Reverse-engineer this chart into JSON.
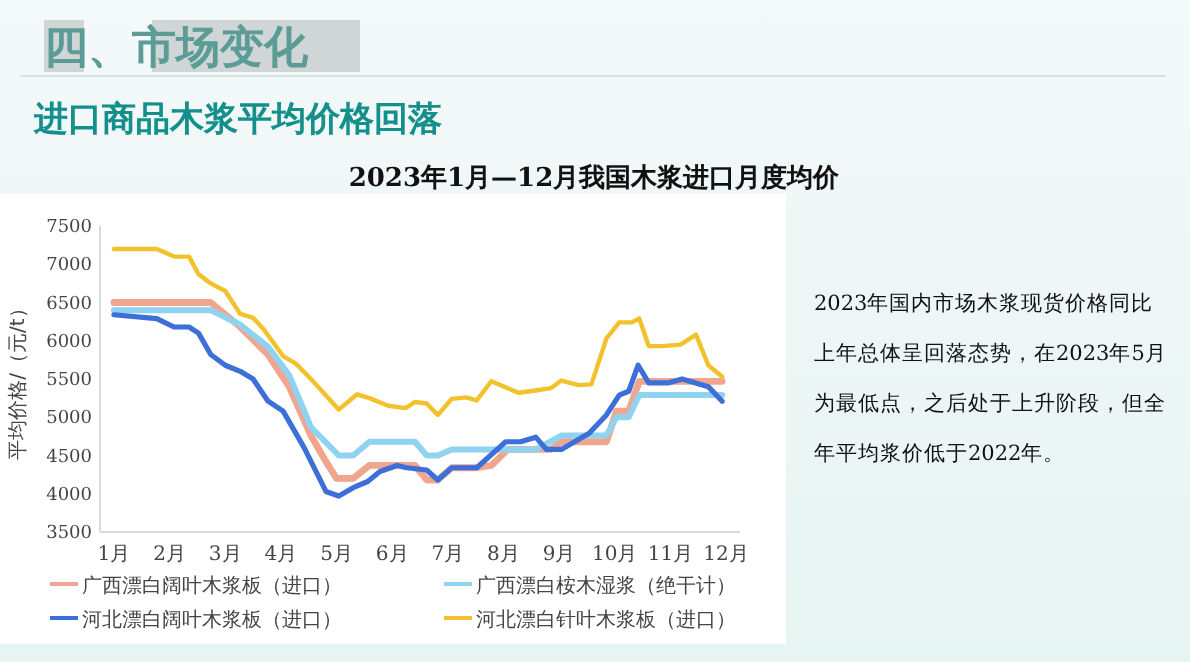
{
  "chart_data": {
    "type": "line",
    "title": "2023年1月—12月我国木浆进口月度均价",
    "ylabel": "平均价格/（元/t）",
    "annotations": [
      "四、市场变化",
      "进口商品木浆平均价格回落",
      "2023年国内市场木浆现货价格同比上年总体呈回落态势，在2023年5月为最低点，之后处于上升阶段，但全年平均浆价低于2022年。"
    ],
    "xlim": [
      0.75,
      12.25
    ],
    "xticks": [
      {
        "value": 1,
        "label": "1月"
      },
      {
        "value": 2,
        "label": "2月"
      },
      {
        "value": 3,
        "label": "3月"
      },
      {
        "value": 4,
        "label": "4月"
      },
      {
        "value": 5,
        "label": "5月"
      },
      {
        "value": 6,
        "label": "6月"
      },
      {
        "value": 7,
        "label": "7月"
      },
      {
        "value": 8,
        "label": "8月"
      },
      {
        "value": 9,
        "label": "9月"
      },
      {
        "value": 10,
        "label": "10月"
      },
      {
        "value": 11,
        "label": "11月"
      },
      {
        "value": 12,
        "label": "12月"
      }
    ],
    "ylim": [
      3500,
      7500
    ],
    "yticks": [
      3500,
      4000,
      4500,
      5000,
      5500,
      6000,
      6500,
      7000,
      7500
    ],
    "grid": false,
    "legend": "bottom",
    "marker": "none",
    "line_style": "solid",
    "series": [
      {
        "name": "广西漂白阔叶木浆板（进口）",
        "color": "#f0a58f",
        "x": [
          1,
          2.74,
          3.27,
          3.77,
          4.15,
          4.54,
          4.81,
          5.0,
          5.3,
          5.59,
          6.41,
          6.62,
          6.82,
          7.07,
          7.52,
          7.78,
          8.08,
          8.85,
          9.04,
          9.85,
          10.03,
          10.25,
          10.44,
          11.93
        ],
        "values": [
          6500,
          6500,
          6180,
          5820,
          5400,
          4760,
          4420,
          4200,
          4200,
          4370,
          4370,
          4180,
          4180,
          4340,
          4340,
          4370,
          4580,
          4580,
          4680,
          4680,
          5080,
          5080,
          5470,
          5470
        ]
      },
      {
        "name": "广西漂白桉木湿浆（绝干计）",
        "color": "#8fd3f0",
        "x": [
          1,
          2.74,
          3.27,
          3.77,
          4.15,
          4.54,
          5.04,
          5.3,
          5.59,
          6.41,
          6.62,
          6.82,
          7.07,
          8.58,
          9.04,
          9.85,
          10.03,
          10.25,
          10.44,
          11.93
        ],
        "values": [
          6400,
          6400,
          6210,
          5920,
          5550,
          4870,
          4500,
          4500,
          4680,
          4680,
          4500,
          4500,
          4580,
          4580,
          4760,
          4760,
          5000,
          5000,
          5290,
          5290
        ]
      },
      {
        "name": "河北漂白阔叶木浆板（进口）",
        "color": "#3d6fd8",
        "x": [
          1,
          1.77,
          2.08,
          2.35,
          2.52,
          2.74,
          3.0,
          3.27,
          3.5,
          3.77,
          4.04,
          4.42,
          4.81,
          5.04,
          5.3,
          5.56,
          5.78,
          6.09,
          6.26,
          6.62,
          6.82,
          7.07,
          7.52,
          8.04,
          8.31,
          8.58,
          8.77,
          9.04,
          9.54,
          9.85,
          10.08,
          10.25,
          10.42,
          10.61,
          10.97,
          11.21,
          11.68,
          11.93
        ],
        "values": [
          6340,
          6290,
          6180,
          6180,
          6100,
          5820,
          5680,
          5600,
          5500,
          5210,
          5080,
          4600,
          4030,
          3970,
          4080,
          4160,
          4290,
          4370,
          4340,
          4310,
          4180,
          4340,
          4340,
          4680,
          4680,
          4740,
          4580,
          4580,
          4790,
          5030,
          5290,
          5340,
          5680,
          5450,
          5450,
          5500,
          5400,
          5210
        ]
      },
      {
        "name": "河北漂白针叶木浆板（进口）",
        "color": "#f2c22d",
        "x": [
          1,
          1.77,
          2.08,
          2.35,
          2.52,
          2.74,
          3.0,
          3.27,
          3.5,
          3.69,
          4.04,
          4.27,
          4.54,
          5.04,
          5.37,
          5.59,
          5.93,
          6.24,
          6.41,
          6.62,
          6.82,
          7.07,
          7.33,
          7.52,
          7.78,
          8.27,
          8.58,
          8.85,
          9.04,
          9.35,
          9.58,
          9.85,
          10.08,
          10.31,
          10.44,
          10.61,
          10.86,
          11.18,
          11.46,
          11.68,
          11.93
        ],
        "values": [
          7200,
          7200,
          7100,
          7100,
          6870,
          6750,
          6650,
          6350,
          6300,
          6150,
          5800,
          5700,
          5500,
          5100,
          5300,
          5250,
          5150,
          5120,
          5200,
          5180,
          5030,
          5240,
          5260,
          5220,
          5470,
          5320,
          5350,
          5380,
          5480,
          5420,
          5430,
          6030,
          6240,
          6240,
          6290,
          5930,
          5930,
          5950,
          6080,
          5680,
          5530
        ]
      }
    ]
  }
}
